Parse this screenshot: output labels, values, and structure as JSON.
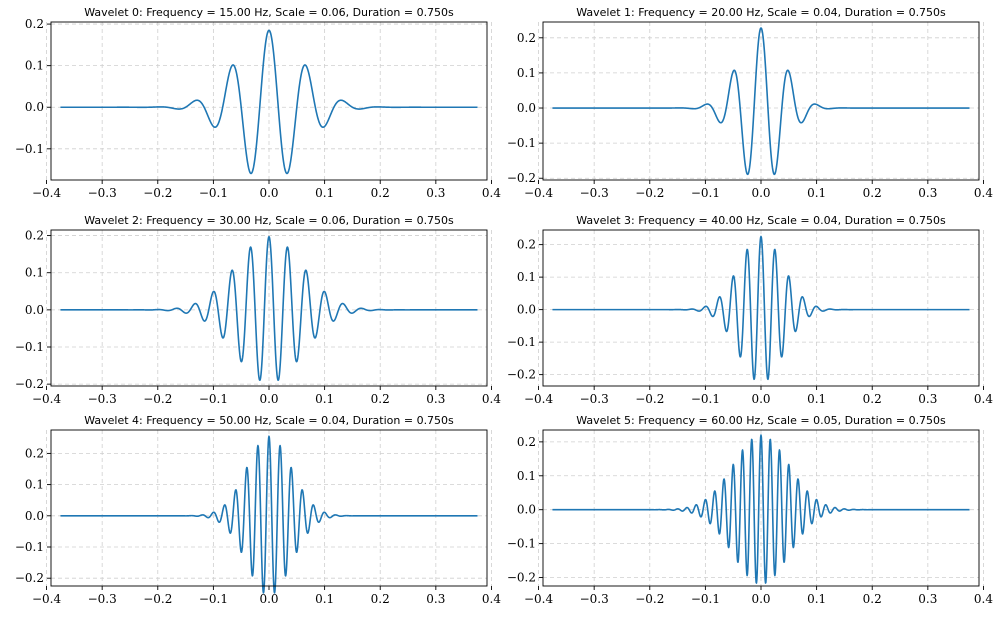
{
  "chart_data": [
    {
      "type": "line",
      "title": "Wavelet 0: Frequency = 15.00 Hz, Scale = 0.06, Duration = 0.750s",
      "frequency_hz": 15.0,
      "scale": 0.06,
      "duration_s": 0.75,
      "xlim": [
        -0.392,
        0.392
      ],
      "ylim": [
        -0.175,
        0.205
      ],
      "xticks": [
        -0.4,
        -0.3,
        -0.2,
        -0.1,
        0.0,
        0.1,
        0.2,
        0.3,
        0.4
      ],
      "xtick_labels": [
        "−0.4",
        "−0.3",
        "−0.2",
        "−0.1",
        "0.0",
        "0.1",
        "0.2",
        "0.3",
        "0.4"
      ],
      "yticks": [
        -0.1,
        0.0,
        0.1,
        0.2
      ],
      "ytick_labels": [
        "−0.1",
        "0.0",
        "0.1",
        "0.2"
      ],
      "grid": true,
      "color": "#1f77b4",
      "peak": 0.185
    },
    {
      "type": "line",
      "title": "Wavelet 1: Frequency = 20.00 Hz, Scale = 0.04, Duration = 0.750s",
      "frequency_hz": 20.0,
      "scale": 0.04,
      "duration_s": 0.75,
      "xlim": [
        -0.392,
        0.392
      ],
      "ylim": [
        -0.205,
        0.245
      ],
      "xticks": [
        -0.4,
        -0.3,
        -0.2,
        -0.1,
        0.0,
        0.1,
        0.2,
        0.3,
        0.4
      ],
      "xtick_labels": [
        "−0.4",
        "−0.3",
        "−0.2",
        "−0.1",
        "0.0",
        "0.1",
        "0.2",
        "0.3",
        "0.4"
      ],
      "yticks": [
        -0.2,
        -0.1,
        0.0,
        0.1,
        0.2
      ],
      "ytick_labels": [
        "−0.2",
        "−0.1",
        "0.0",
        "0.1",
        "0.2"
      ],
      "grid": true,
      "color": "#1f77b4",
      "peak": 0.228
    },
    {
      "type": "line",
      "title": "Wavelet 2: Frequency = 30.00 Hz, Scale = 0.06, Duration = 0.750s",
      "frequency_hz": 30.0,
      "scale": 0.06,
      "duration_s": 0.75,
      "xlim": [
        -0.392,
        0.392
      ],
      "ylim": [
        -0.205,
        0.215
      ],
      "xticks": [
        -0.4,
        -0.3,
        -0.2,
        -0.1,
        0.0,
        0.1,
        0.2,
        0.3,
        0.4
      ],
      "xtick_labels": [
        "−0.4",
        "−0.3",
        "−0.2",
        "−0.1",
        "0.0",
        "0.1",
        "0.2",
        "0.3",
        "0.4"
      ],
      "yticks": [
        -0.2,
        -0.1,
        0.0,
        0.1,
        0.2
      ],
      "ytick_labels": [
        "−0.2",
        "−0.1",
        "0.0",
        "0.1",
        "0.2"
      ],
      "grid": true,
      "color": "#1f77b4",
      "peak": 0.197
    },
    {
      "type": "line",
      "title": "Wavelet 3: Frequency = 40.00 Hz, Scale = 0.04, Duration = 0.750s",
      "frequency_hz": 40.0,
      "scale": 0.04,
      "duration_s": 0.75,
      "xlim": [
        -0.392,
        0.392
      ],
      "ylim": [
        -0.235,
        0.245
      ],
      "xticks": [
        -0.4,
        -0.3,
        -0.2,
        -0.1,
        0.0,
        0.1,
        0.2,
        0.3,
        0.4
      ],
      "xtick_labels": [
        "−0.4",
        "−0.3",
        "−0.2",
        "−0.1",
        "0.0",
        "0.1",
        "0.2",
        "0.3",
        "0.4"
      ],
      "yticks": [
        -0.2,
        -0.1,
        0.0,
        0.1,
        0.2
      ],
      "ytick_labels": [
        "−0.2",
        "−0.1",
        "0.0",
        "0.1",
        "0.2"
      ],
      "grid": true,
      "color": "#1f77b4",
      "peak": 0.225
    },
    {
      "type": "line",
      "title": "Wavelet 4: Frequency = 50.00 Hz, Scale = 0.04, Duration = 0.750s",
      "frequency_hz": 50.0,
      "scale": 0.04,
      "duration_s": 0.75,
      "xlim": [
        -0.392,
        0.392
      ],
      "ylim": [
        -0.225,
        0.275
      ],
      "xticks": [
        -0.4,
        -0.3,
        -0.2,
        -0.1,
        0.0,
        0.1,
        0.2,
        0.3,
        0.4
      ],
      "xtick_labels": [
        "−0.4",
        "−0.3",
        "−0.2",
        "−0.1",
        "0.0",
        "0.1",
        "0.2",
        "0.3",
        "0.4"
      ],
      "yticks": [
        -0.2,
        -0.1,
        0.0,
        0.1,
        0.2
      ],
      "ytick_labels": [
        "−0.2",
        "−0.1",
        "0.0",
        "0.1",
        "0.2"
      ],
      "grid": true,
      "color": "#1f77b4",
      "peak": 0.255
    },
    {
      "type": "line",
      "title": "Wavelet 5: Frequency = 60.00 Hz, Scale = 0.05, Duration = 0.750s",
      "frequency_hz": 60.0,
      "scale": 0.05,
      "duration_s": 0.75,
      "xlim": [
        -0.392,
        0.392
      ],
      "ylim": [
        -0.225,
        0.235
      ],
      "xticks": [
        -0.4,
        -0.3,
        -0.2,
        -0.1,
        0.0,
        0.1,
        0.2,
        0.3,
        0.4
      ],
      "xtick_labels": [
        "−0.4",
        "−0.3",
        "−0.2",
        "−0.1",
        "0.0",
        "0.1",
        "0.2",
        "0.3",
        "0.4"
      ],
      "yticks": [
        -0.2,
        -0.1,
        0.0,
        0.1,
        0.2
      ],
      "ytick_labels": [
        "−0.2",
        "−0.1",
        "0.0",
        "0.1",
        "0.2"
      ],
      "grid": true,
      "color": "#1f77b4",
      "peak": 0.22
    }
  ]
}
